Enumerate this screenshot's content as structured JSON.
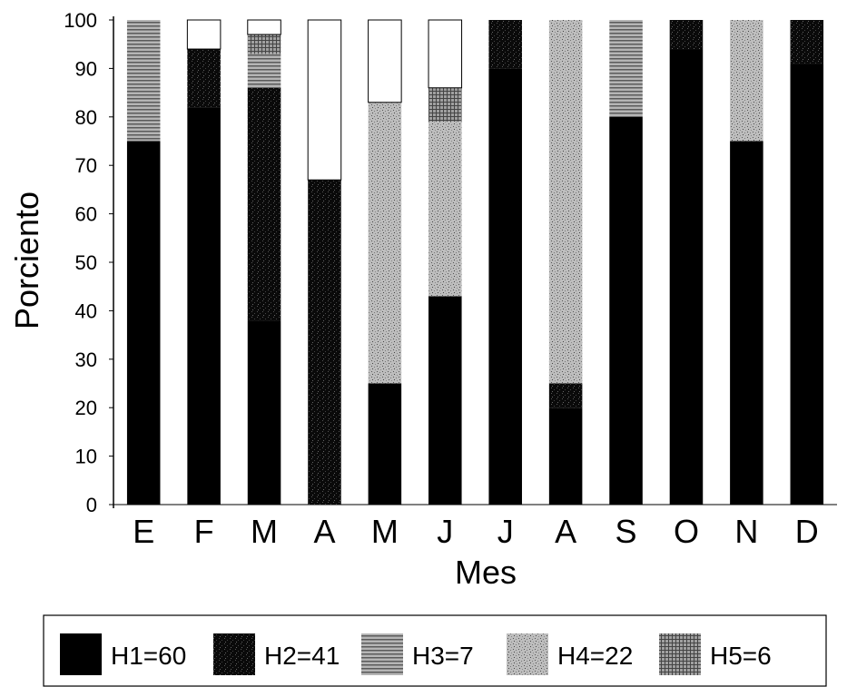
{
  "chart_data": {
    "type": "bar",
    "stacked": true,
    "categories": [
      "E",
      "F",
      "M",
      "A",
      "M",
      "J",
      "J",
      "A",
      "S",
      "O",
      "N",
      "D"
    ],
    "xlabel": "Mes",
    "ylabel": "Porciento",
    "ylim": [
      0,
      100
    ],
    "yticks": [
      0,
      10,
      20,
      30,
      40,
      50,
      60,
      70,
      80,
      90,
      100
    ],
    "grid": false,
    "legend_position": "bottom",
    "series": [
      {
        "name": "H1=60",
        "values": [
          75,
          82,
          38,
          0,
          25,
          43,
          90,
          20,
          80,
          94,
          75,
          91
        ],
        "color": "#000000",
        "pattern": "solid"
      },
      {
        "name": "H2=41",
        "values": [
          0,
          12,
          48,
          67,
          0,
          0,
          10,
          5,
          0,
          6,
          0,
          9
        ],
        "color": "#111111",
        "pattern": "speckle-dark"
      },
      {
        "name": "H3=7",
        "values": [
          25,
          0,
          7,
          0,
          0,
          0,
          0,
          0,
          20,
          0,
          0,
          0
        ],
        "color": "#8a8a8a",
        "pattern": "hlines"
      },
      {
        "name": "H4=22",
        "values": [
          0,
          0,
          0,
          0,
          58,
          36,
          0,
          75,
          0,
          0,
          25,
          0
        ],
        "color": "#9a9a9a",
        "pattern": "speckle-light"
      },
      {
        "name": "H5=6",
        "values": [
          0,
          0,
          4,
          0,
          0,
          7,
          0,
          0,
          0,
          0,
          0,
          0
        ],
        "color": "#6a6a6a",
        "pattern": "grid"
      }
    ]
  }
}
